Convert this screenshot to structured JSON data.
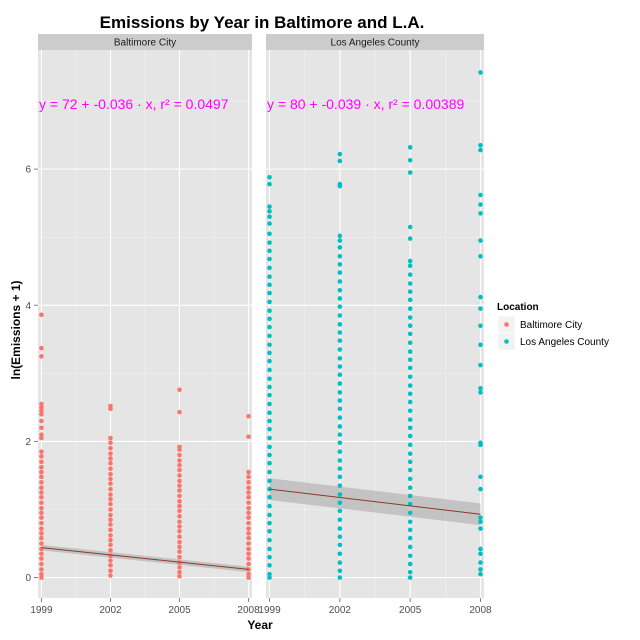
{
  "chart_data": {
    "type": "scatter",
    "title": "Emissions by Year in Baltimore and L.A.",
    "xlabel": "Year",
    "ylabel": "ln(Emissions + 1)",
    "x_ticks": [
      1999,
      2002,
      2005,
      2008
    ],
    "y_ticks": [
      0,
      2,
      4,
      6
    ],
    "xlim": [
      1998.85,
      2008.15
    ],
    "ylim": [
      -0.3,
      7.75
    ],
    "grid": true,
    "legend": {
      "title": "Location",
      "placement": "right",
      "entries": [
        {
          "name": "Baltimore City",
          "color": "#F8766D"
        },
        {
          "name": "Los Angeles County",
          "color": "#00BFC4"
        }
      ]
    },
    "panels": [
      {
        "strip_label": "Baltimore City",
        "color": "#F8766D",
        "equation": "y = 72 + -0.036 · x,  r² = 0.0497",
        "fit": {
          "x": [
            1999,
            2008
          ],
          "y": [
            0.44,
            0.12
          ]
        },
        "band_halfwidth": 0.04,
        "series": [
          {
            "x": 1999,
            "values": [
              3.86,
              3.37,
              3.25,
              2.55,
              2.5,
              2.45,
              2.4,
              2.3,
              2.2,
              2.1,
              2.05,
              1.85,
              1.78,
              1.7,
              1.62,
              1.55,
              1.48,
              1.4,
              1.32,
              1.25,
              1.18,
              1.1,
              1.02,
              0.95,
              0.88,
              0.8,
              0.72,
              0.65,
              0.58,
              0.5,
              0.42,
              0.35,
              0.28,
              0.2,
              0.12,
              0.05,
              0.0
            ]
          },
          {
            "x": 2002,
            "values": [
              2.52,
              2.48,
              2.05,
              1.98,
              1.9,
              1.82,
              1.75,
              1.68,
              1.6,
              1.52,
              1.45,
              1.38,
              1.3,
              1.22,
              1.15,
              1.08,
              1.0,
              0.92,
              0.85,
              0.78,
              0.7,
              0.62,
              0.55,
              0.48,
              0.4,
              0.32,
              0.25,
              0.18,
              0.1,
              0.03
            ]
          },
          {
            "x": 2005,
            "values": [
              2.76,
              2.43,
              1.92,
              1.88,
              1.8,
              1.72,
              1.65,
              1.58,
              1.5,
              1.42,
              1.35,
              1.28,
              1.2,
              1.12,
              1.05,
              0.98,
              0.9,
              0.82,
              0.75,
              0.68,
              0.6,
              0.52,
              0.45,
              0.38,
              0.3,
              0.22,
              0.15,
              0.08,
              0.02
            ]
          },
          {
            "x": 2008,
            "values": [
              2.37,
              2.07,
              1.55,
              1.48,
              1.4,
              1.32,
              1.25,
              1.18,
              1.1,
              1.02,
              0.95,
              0.88,
              0.8,
              0.72,
              0.65,
              0.58,
              0.5,
              0.42,
              0.35,
              0.28,
              0.2,
              0.12,
              0.05,
              0.0
            ]
          }
        ]
      },
      {
        "strip_label": "Los Angeles County",
        "color": "#00BFC4",
        "equation": "y = 80 + -0.039 · x,  r² = 0.00389",
        "fit": {
          "x": [
            1999,
            2008
          ],
          "y": [
            1.3,
            0.93
          ]
        },
        "band_halfwidth": 0.16,
        "series": [
          {
            "x": 1999,
            "values": [
              5.88,
              5.78,
              5.45,
              5.38,
              5.3,
              5.2,
              5.05,
              4.92,
              4.8,
              4.68,
              4.55,
              4.42,
              4.3,
              4.18,
              4.05,
              3.92,
              3.8,
              3.68,
              3.55,
              3.42,
              3.3,
              3.18,
              3.05,
              2.92,
              2.8,
              2.68,
              2.55,
              2.42,
              2.3,
              2.18,
              2.05,
              1.92,
              1.8,
              1.68,
              1.55,
              1.42,
              1.3,
              1.18,
              1.05,
              0.92,
              0.8,
              0.68,
              0.55,
              0.42,
              0.3,
              0.18,
              0.05,
              0.0
            ]
          },
          {
            "x": 2002,
            "values": [
              6.22,
              6.12,
              5.78,
              5.75,
              5.02,
              4.95,
              4.85,
              4.72,
              4.6,
              4.48,
              4.35,
              4.22,
              4.1,
              3.98,
              3.85,
              3.72,
              3.6,
              3.48,
              3.35,
              3.22,
              3.1,
              2.98,
              2.85,
              2.72,
              2.6,
              2.48,
              2.35,
              2.22,
              2.1,
              1.98,
              1.85,
              1.72,
              1.6,
              1.48,
              1.35,
              1.22,
              1.1,
              0.98,
              0.85,
              0.72,
              0.6,
              0.48,
              0.35,
              0.22,
              0.1,
              0.0
            ]
          },
          {
            "x": 2005,
            "values": [
              6.32,
              6.13,
              5.95,
              5.15,
              4.98,
              4.65,
              4.58,
              4.45,
              4.32,
              4.2,
              4.08,
              3.95,
              3.82,
              3.7,
              3.58,
              3.45,
              3.32,
              3.2,
              3.08,
              2.95,
              2.82,
              2.7,
              2.58,
              2.45,
              2.32,
              2.2,
              2.08,
              1.95,
              1.82,
              1.7,
              1.58,
              1.45,
              1.32,
              1.2,
              1.08,
              0.95,
              0.82,
              0.7,
              0.58,
              0.45,
              0.32,
              0.2,
              0.08,
              0.0
            ]
          },
          {
            "x": 2008,
            "values": [
              7.42,
              6.35,
              6.28,
              5.62,
              5.48,
              5.35,
              4.95,
              4.72,
              4.12,
              3.95,
              3.7,
              3.42,
              3.12,
              2.78,
              2.72,
              1.98,
              1.95,
              1.48,
              1.3,
              0.88,
              0.82,
              0.72,
              0.42,
              0.35,
              0.22,
              0.12,
              0.05
            ]
          }
        ]
      }
    ]
  }
}
